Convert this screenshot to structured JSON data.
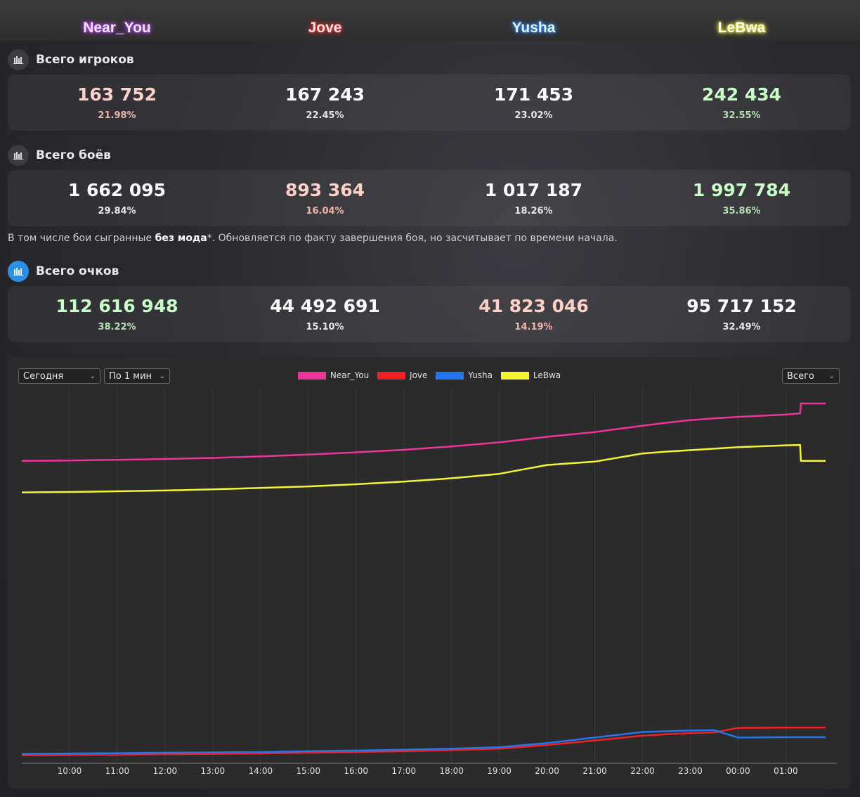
{
  "streamers": [
    {
      "name": "Near_You",
      "color": "#f0e6ff",
      "glow": "#c040ff"
    },
    {
      "name": "Jove",
      "color": "#ffe0e0",
      "glow": "#ff3030"
    },
    {
      "name": "Yusha",
      "color": "#e0f0ff",
      "glow": "#2f8cff"
    },
    {
      "name": "LeBwa",
      "color": "#fffff0",
      "glow": "#f5ff40"
    }
  ],
  "players": {
    "title": "Всего игроков",
    "items": [
      {
        "value": "163 752",
        "pct": "21.98%",
        "color": "#ffd0c8"
      },
      {
        "value": "167 243",
        "pct": "22.45%",
        "color": "#ffffff"
      },
      {
        "value": "171 453",
        "pct": "23.02%",
        "color": "#ffffff"
      },
      {
        "value": "242 434",
        "pct": "32.55%",
        "color": "#c8ffc8"
      }
    ]
  },
  "battles": {
    "title": "Всего боёв",
    "items": [
      {
        "value": "1 662 095",
        "pct": "29.84%",
        "color": "#ffffff"
      },
      {
        "value": "893 364",
        "pct": "16.04%",
        "color": "#ffd0c8"
      },
      {
        "value": "1 017 187",
        "pct": "18.26%",
        "color": "#ffffff"
      },
      {
        "value": "1 997 784",
        "pct": "35.86%",
        "color": "#c8ffc8"
      }
    ],
    "note_prefix": "В том числе бои сыгранные ",
    "note_bold": "без мода",
    "note_suffix": "*. Обновляется по факту завершения боя, но засчитывает по времени начала."
  },
  "points": {
    "title": "Всего очков",
    "items": [
      {
        "value": "112 616 948",
        "pct": "38.22%",
        "color": "#c8ffc8"
      },
      {
        "value": "44 492 691",
        "pct": "15.10%",
        "color": "#ffffff"
      },
      {
        "value": "41 823 046",
        "pct": "14.19%",
        "color": "#ffd0c8"
      },
      {
        "value": "95 717 152",
        "pct": "32.49%",
        "color": "#ffffff"
      }
    ]
  },
  "controls": {
    "period": "Сегодня",
    "interval": "По 1 мин",
    "mode": "Всего"
  },
  "chart_data": {
    "type": "line",
    "x_ticks": [
      "10:00",
      "11:00",
      "12:00",
      "13:00",
      "14:00",
      "15:00",
      "16:00",
      "17:00",
      "18:00",
      "19:00",
      "20:00",
      "21:00",
      "22:00",
      "23:00",
      "00:00",
      "01:00"
    ],
    "x": [
      "09:00",
      "10:00",
      "11:00",
      "12:00",
      "13:00",
      "14:00",
      "15:00",
      "16:00",
      "17:00",
      "18:00",
      "19:00",
      "20:00",
      "21:00",
      "22:00",
      "22:30",
      "23:00",
      "23:30",
      "00:00",
      "01:00",
      "01:18",
      "01:19",
      "01:50"
    ],
    "series": [
      {
        "name": "Near_You",
        "color": "#ee3399",
        "values": [
          80.5,
          80.6,
          80.8,
          81.0,
          81.3,
          81.7,
          82.2,
          82.8,
          83.5,
          84.4,
          85.5,
          87.0,
          88.3,
          90.0,
          90.8,
          91.5,
          92.0,
          92.4,
          93.0,
          93.3,
          96.0,
          96.0
        ]
      },
      {
        "name": "Jove",
        "color": "#ee2222",
        "values": [
          1.0,
          1.1,
          1.2,
          1.3,
          1.4,
          1.5,
          1.7,
          1.9,
          2.1,
          2.4,
          2.8,
          3.8,
          5.0,
          6.3,
          6.7,
          7.0,
          7.2,
          8.4,
          8.5,
          8.5,
          8.5,
          8.5
        ]
      },
      {
        "name": "Yusha",
        "color": "#2277ee",
        "values": [
          1.4,
          1.5,
          1.6,
          1.7,
          1.8,
          1.9,
          2.1,
          2.3,
          2.5,
          2.8,
          3.2,
          4.3,
          5.8,
          7.3,
          7.5,
          7.7,
          7.8,
          5.8,
          5.9,
          5.9,
          5.9,
          5.9
        ]
      },
      {
        "name": "LeBwa",
        "color": "#f5f532",
        "values": [
          72.0,
          72.1,
          72.3,
          72.5,
          72.8,
          73.2,
          73.6,
          74.2,
          74.9,
          75.8,
          77.0,
          79.4,
          80.3,
          82.5,
          83.0,
          83.4,
          83.8,
          84.2,
          84.7,
          84.8,
          80.5,
          80.5
        ]
      }
    ]
  }
}
